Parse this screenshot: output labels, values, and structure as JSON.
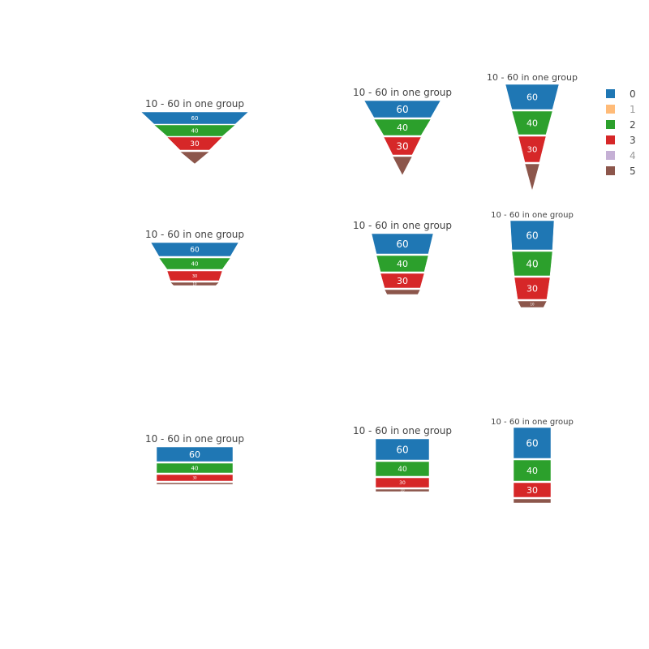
{
  "chart_data": {
    "type": "funnel",
    "colors": {
      "0": "#1f77b4",
      "1": "#ffbb78",
      "2": "#2ca02c",
      "3": "#d62728",
      "4": "#c5b0d5",
      "5": "#8c564b"
    },
    "legend": {
      "placement": "right",
      "entries": [
        {
          "label": "0",
          "color": "#1f77b4",
          "visible": true
        },
        {
          "label": "1",
          "color": "#ffbb78",
          "visible": false
        },
        {
          "label": "2",
          "color": "#2ca02c",
          "visible": true
        },
        {
          "label": "3",
          "color": "#d62728",
          "visible": true
        },
        {
          "label": "4",
          "color": "#c5b0d5",
          "visible": false
        },
        {
          "label": "5",
          "color": "#8c564b",
          "visible": true
        }
      ]
    },
    "panels": [
      {
        "title": "10 - 60 in one group",
        "series": [
          "0",
          "2",
          "3",
          "5"
        ],
        "values": [
          60,
          40,
          30,
          10
        ],
        "labels": [
          "60",
          "40",
          "30",
          ""
        ]
      },
      {
        "title": "10 - 60 in one group",
        "series": [
          "0",
          "2",
          "3",
          "5"
        ],
        "values": [
          60,
          40,
          30,
          10
        ],
        "labels": [
          "60",
          "40",
          "30",
          ""
        ]
      },
      {
        "title": "10 - 60 in one group",
        "series": [
          "0",
          "2",
          "3",
          "5"
        ],
        "values": [
          60,
          40,
          30,
          10
        ],
        "labels": [
          "60",
          "40",
          "30",
          ""
        ]
      },
      {
        "title": "10 - 60 in one group",
        "series": [
          "0",
          "2",
          "3",
          "5"
        ],
        "values": [
          60,
          40,
          30,
          10
        ],
        "labels": [
          "60",
          "40",
          "30",
          "10"
        ]
      },
      {
        "title": "10 - 60 in one group",
        "series": [
          "0",
          "2",
          "3",
          "5"
        ],
        "values": [
          60,
          40,
          30,
          10
        ],
        "labels": [
          "60",
          "40",
          "30",
          ""
        ]
      },
      {
        "title": "10 - 60 in one group",
        "series": [
          "0",
          "2",
          "3",
          "5"
        ],
        "values": [
          60,
          40,
          30,
          10
        ],
        "labels": [
          "60",
          "40",
          "30",
          "10"
        ]
      },
      {
        "title": "10 - 60 in one group",
        "series": [
          "0",
          "2",
          "3",
          "5"
        ],
        "values": [
          60,
          40,
          30,
          10
        ],
        "labels": [
          "60",
          "40",
          "30",
          ""
        ]
      },
      {
        "title": "10 - 60 in one group",
        "series": [
          "0",
          "2",
          "3",
          "5"
        ],
        "values": [
          60,
          40,
          30,
          10
        ],
        "labels": [
          "60",
          "40",
          "30",
          "10"
        ]
      },
      {
        "title": "10 - 60 in one group",
        "series": [
          "0",
          "2",
          "3",
          "5"
        ],
        "values": [
          60,
          40,
          30,
          10
        ],
        "labels": [
          "60",
          "40",
          "30",
          ""
        ]
      }
    ]
  }
}
